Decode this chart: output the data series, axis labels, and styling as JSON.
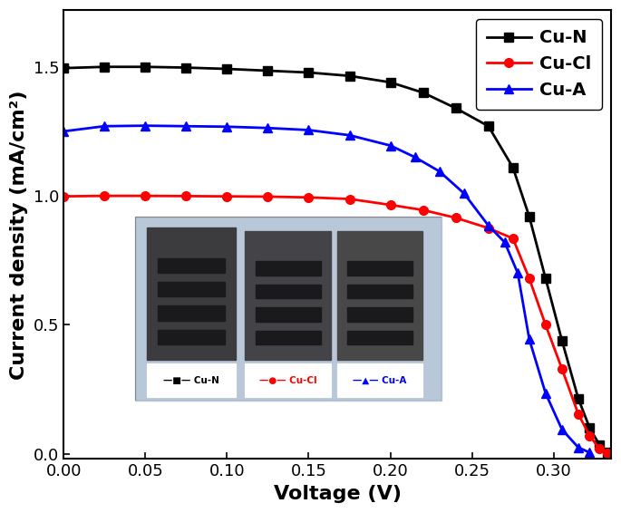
{
  "title": "",
  "xlabel": "Voltage (V)",
  "ylabel": "Current density (mA/cm²)",
  "xlim": [
    0.0,
    0.335
  ],
  "ylim": [
    -0.02,
    1.72
  ],
  "yticks": [
    0.0,
    0.5,
    1.0,
    1.5
  ],
  "xticks": [
    0.0,
    0.05,
    0.1,
    0.15,
    0.2,
    0.25,
    0.3
  ],
  "cu_n_x": [
    0.0,
    0.025,
    0.05,
    0.075,
    0.1,
    0.125,
    0.15,
    0.175,
    0.2,
    0.22,
    0.24,
    0.26,
    0.275,
    0.285,
    0.295,
    0.305,
    0.315,
    0.322,
    0.328,
    0.333
  ],
  "cu_n_y": [
    1.495,
    1.5,
    1.5,
    1.497,
    1.492,
    1.485,
    1.478,
    1.465,
    1.44,
    1.4,
    1.34,
    1.27,
    1.11,
    0.92,
    0.68,
    0.44,
    0.215,
    0.1,
    0.035,
    0.005
  ],
  "cu_cl_x": [
    0.0,
    0.025,
    0.05,
    0.075,
    0.1,
    0.125,
    0.15,
    0.175,
    0.2,
    0.22,
    0.24,
    0.26,
    0.275,
    0.285,
    0.295,
    0.305,
    0.315,
    0.322,
    0.328,
    0.333
  ],
  "cu_cl_y": [
    0.998,
    1.0,
    1.0,
    0.999,
    0.998,
    0.997,
    0.994,
    0.988,
    0.965,
    0.945,
    0.915,
    0.875,
    0.835,
    0.68,
    0.5,
    0.33,
    0.155,
    0.07,
    0.02,
    0.003
  ],
  "cu_a_x": [
    0.0,
    0.025,
    0.05,
    0.075,
    0.1,
    0.125,
    0.15,
    0.175,
    0.2,
    0.215,
    0.23,
    0.245,
    0.26,
    0.27,
    0.278,
    0.285,
    0.295,
    0.305,
    0.315,
    0.322
  ],
  "cu_a_y": [
    1.25,
    1.27,
    1.272,
    1.27,
    1.268,
    1.263,
    1.255,
    1.235,
    1.195,
    1.15,
    1.095,
    1.01,
    0.885,
    0.82,
    0.7,
    0.445,
    0.235,
    0.095,
    0.025,
    0.005
  ],
  "cu_n_color": "#000000",
  "cu_cl_color": "#ff0000",
  "cu_a_color": "#0000ff",
  "line_width": 2.0,
  "marker_size": 7,
  "legend_fontsize": 14,
  "axis_label_fontsize": 16,
  "tick_fontsize": 13,
  "inset_bg": "#b8c8d8",
  "cell_bg_dark": "#3a3a3c",
  "cell_bg_mid": "#48484c",
  "slot_color": "#1a1a1c",
  "inset_labels": [
    "Cu-N",
    "Cu-Cl",
    "Cu-A"
  ],
  "inset_label_colors": [
    "#000000",
    "#ff0000",
    "#0000ff"
  ]
}
